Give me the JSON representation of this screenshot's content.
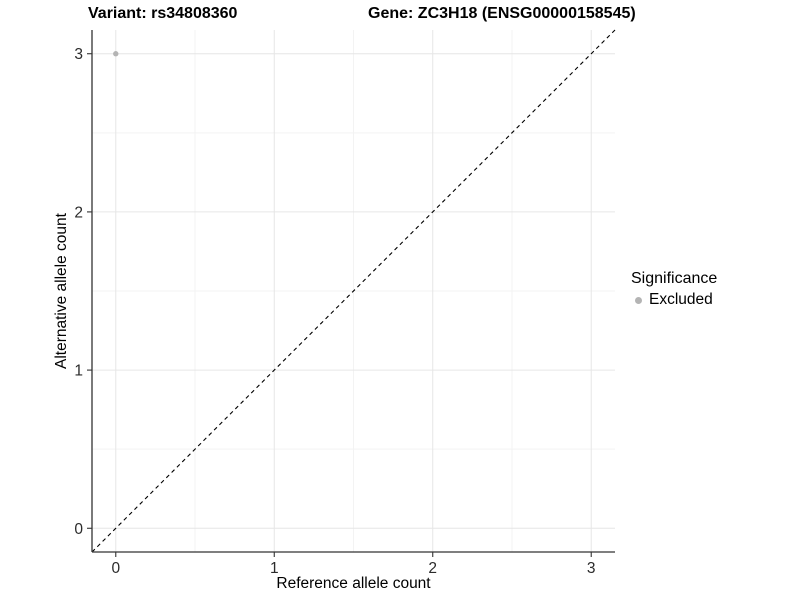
{
  "title": {
    "variant": "Variant: rs34808360",
    "gene": "Gene: ZC3H18 (ENSG00000158545)"
  },
  "chart_data": {
    "type": "scatter",
    "title": "Variant: rs34808360    Gene: ZC3H18 (ENSG00000158545)",
    "xlabel": "Reference allele count",
    "ylabel": "Alternative allele count",
    "xlim": [
      -0.15,
      3.15
    ],
    "ylim": [
      -0.15,
      3.15
    ],
    "xticks": [
      0,
      1,
      2,
      3
    ],
    "yticks": [
      0,
      1,
      2,
      3
    ],
    "xminor": [
      0.5,
      1.5,
      2.5
    ],
    "yminor": [
      0.5,
      1.5,
      2.5
    ],
    "grid": "major and minor gridlines, white background, left and bottom axis lines only",
    "identity_line": {
      "style": "dashed",
      "color": "#000000",
      "from": [
        -0.15,
        -0.15
      ],
      "to": [
        3.15,
        3.15
      ]
    },
    "series": [
      {
        "name": "Excluded",
        "color": "#b4b4b4",
        "points": [
          [
            0,
            3
          ]
        ]
      }
    ],
    "legend": {
      "position": "right",
      "title": "Significance",
      "entries": [
        {
          "label": "Excluded",
          "color": "#b4b4b4"
        }
      ]
    }
  },
  "colors": {
    "background": "#ffffff",
    "axis_line": "#333333",
    "tick_label": "#2b2b2b",
    "grid_major": "#e6e6e6",
    "grid_minor": "#f3f3f3"
  }
}
